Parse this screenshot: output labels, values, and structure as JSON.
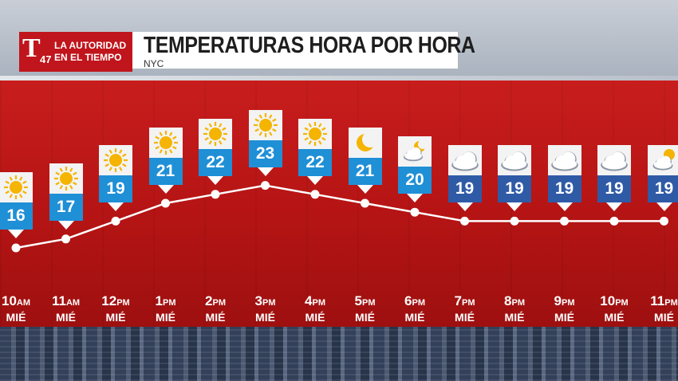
{
  "header": {
    "title": "TEMPERATURAS HORA POR HORA",
    "subtitle": "NYC",
    "logo": {
      "letter": "T",
      "channel": "47",
      "line1": "LA AUTORIDAD",
      "line2": "EN EL TIEMPO"
    }
  },
  "colors": {
    "band": "#c81d1d",
    "day_value": "#1f8fd6",
    "night_value": "#2f5aa6",
    "sun": "#f5b400",
    "line": "#ffffff"
  },
  "chart_data": {
    "type": "line",
    "x": [
      "10 AM",
      "11 AM",
      "12 PM",
      "1 PM",
      "2 PM",
      "3 PM",
      "4 PM",
      "5 PM",
      "6 PM",
      "7 PM",
      "8 PM",
      "9 PM",
      "10 PM",
      "11 PM"
    ],
    "series": [
      {
        "values": [
          16,
          17,
          19,
          21,
          22,
          23,
          22,
          21,
          20,
          19,
          19,
          19,
          19,
          19
        ]
      }
    ],
    "icons": [
      "sun-icon",
      "sun-icon",
      "sun-icon",
      "sun-icon",
      "sun-icon",
      "sun-icon",
      "sun-icon",
      "moon-icon",
      "moon-cloud-icon",
      "cloud-icon",
      "cloud-icon",
      "cloud-icon",
      "cloud-icon",
      "partly-cloudy-icon"
    ],
    "ylim": [
      16,
      23
    ],
    "grid": false,
    "title": "TEMPERATURAS HORA POR HORA"
  },
  "time_labels": [
    {
      "hour": "10",
      "ampm": "AM",
      "day": "MIÉ"
    },
    {
      "hour": "11",
      "ampm": "AM",
      "day": "MIÉ"
    },
    {
      "hour": "12",
      "ampm": "PM",
      "day": "MIÉ"
    },
    {
      "hour": "1",
      "ampm": "PM",
      "day": "MIÉ"
    },
    {
      "hour": "2",
      "ampm": "PM",
      "day": "MIÉ"
    },
    {
      "hour": "3",
      "ampm": "PM",
      "day": "MIÉ"
    },
    {
      "hour": "4",
      "ampm": "PM",
      "day": "MIÉ"
    },
    {
      "hour": "5",
      "ampm": "PM",
      "day": "MIÉ"
    },
    {
      "hour": "6",
      "ampm": "PM",
      "day": "MIÉ"
    },
    {
      "hour": "7",
      "ampm": "PM",
      "day": "MIÉ"
    },
    {
      "hour": "8",
      "ampm": "PM",
      "day": "MIÉ"
    },
    {
      "hour": "9",
      "ampm": "PM",
      "day": "MIÉ"
    },
    {
      "hour": "10",
      "ampm": "PM",
      "day": "MIÉ"
    },
    {
      "hour": "11",
      "ampm": "PM",
      "day": "MIÉ"
    }
  ]
}
